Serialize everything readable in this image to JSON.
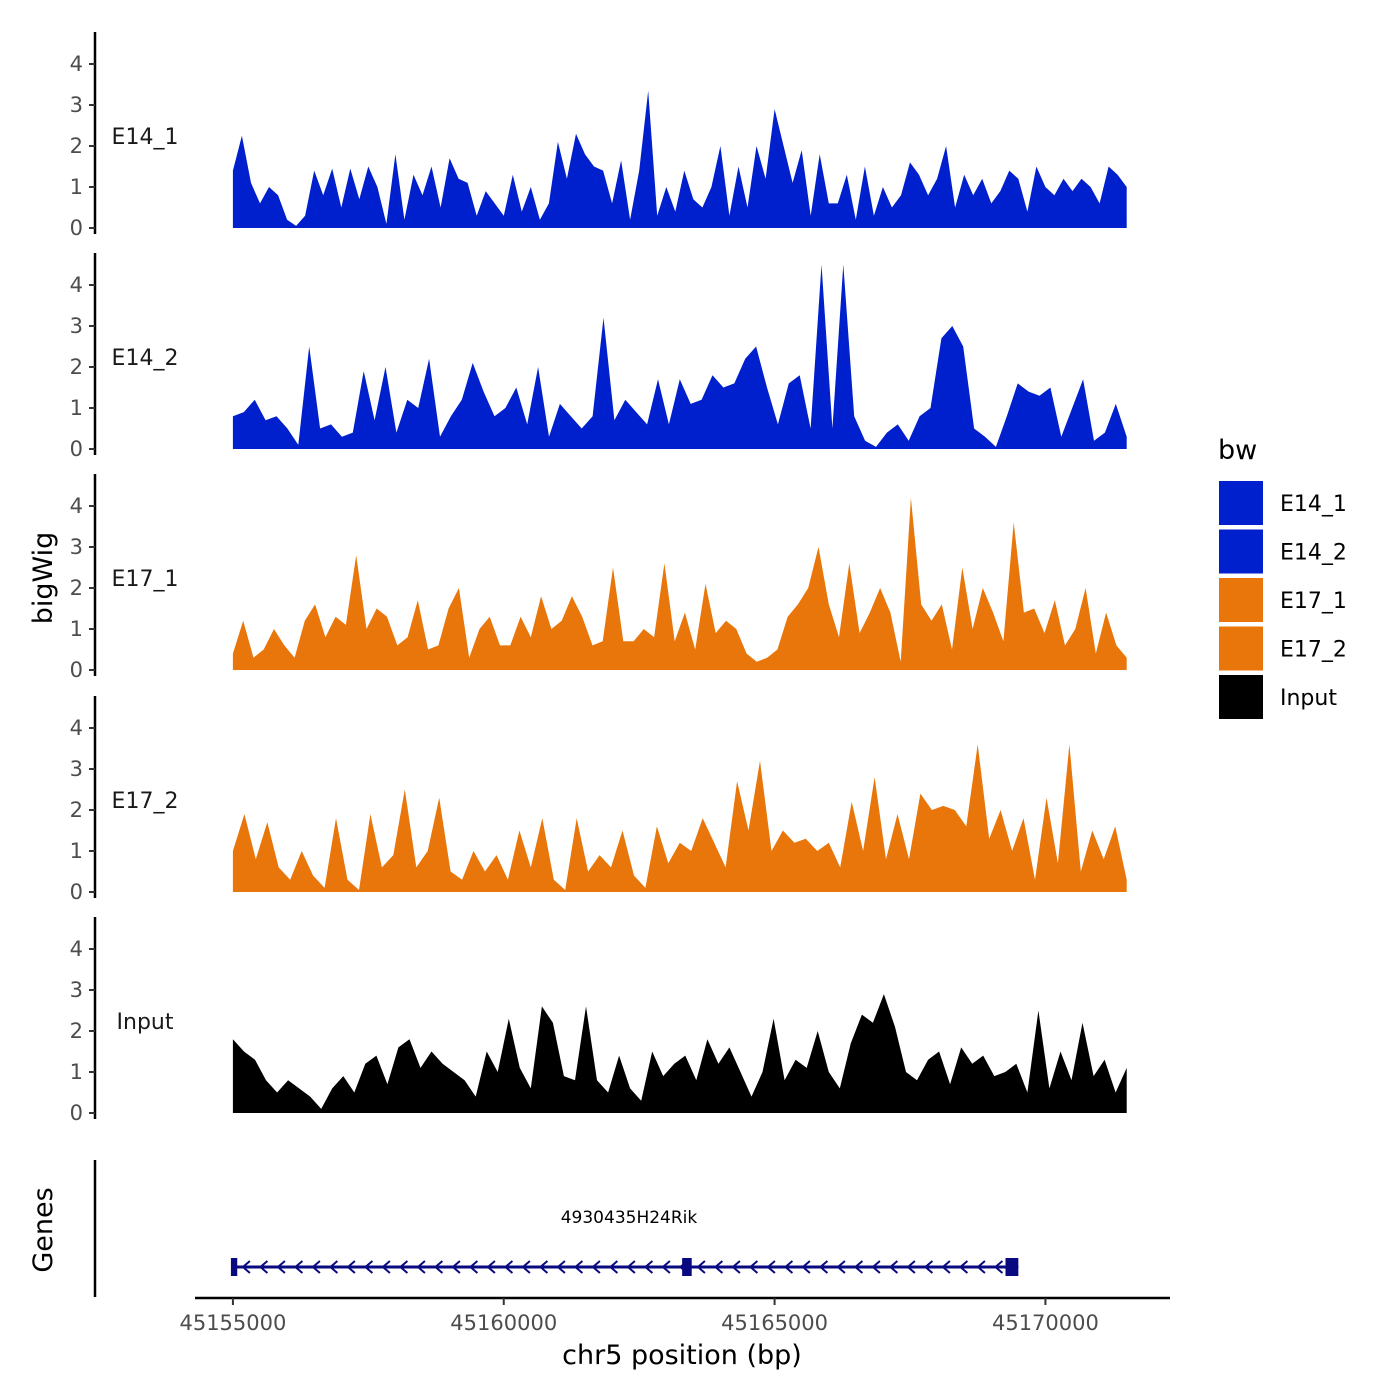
{
  "chart_data": {
    "type": "area",
    "ylabel": "bigWig",
    "xlabel": "chr5 position (bp)",
    "genes_label": "Genes",
    "y_ticks": [
      "0",
      "1",
      "2",
      "3",
      "4"
    ],
    "ylim": [
      0,
      4.7
    ],
    "x_ticks": [
      "45155000",
      "45160000",
      "45165000",
      "45170000"
    ],
    "xlim": [
      45154300,
      45172300
    ],
    "x_range": [
      45155000,
      45171500
    ],
    "legend": {
      "title": "bw",
      "entries": [
        {
          "label": "E14_1",
          "color": "#0020CD"
        },
        {
          "label": "E14_2",
          "color": "#0020CD"
        },
        {
          "label": "E17_1",
          "color": "#E8760A"
        },
        {
          "label": "E17_2",
          "color": "#E8760A"
        },
        {
          "label": "Input",
          "color": "#000000"
        }
      ]
    },
    "series": [
      {
        "name": "E14_1",
        "color": "#0020CD",
        "values": [
          1.4,
          2.25,
          1.1,
          0.6,
          1.0,
          0.8,
          0.2,
          0.05,
          0.3,
          1.4,
          0.8,
          1.45,
          0.5,
          1.45,
          0.7,
          1.5,
          1.0,
          0.1,
          1.8,
          0.2,
          1.3,
          0.8,
          1.5,
          0.5,
          1.7,
          1.2,
          1.1,
          0.3,
          0.9,
          0.6,
          0.3,
          1.3,
          0.4,
          1.0,
          0.2,
          0.6,
          2.1,
          1.2,
          2.3,
          1.8,
          1.5,
          1.4,
          0.6,
          1.65,
          0.2,
          1.4,
          3.35,
          0.3,
          1.0,
          0.4,
          1.4,
          0.7,
          0.5,
          1.0,
          2.0,
          0.3,
          1.5,
          0.5,
          2.0,
          1.2,
          2.9,
          2.0,
          1.1,
          1.9,
          0.3,
          1.8,
          0.6,
          0.6,
          1.3,
          0.2,
          1.5,
          0.3,
          1.0,
          0.5,
          0.8,
          1.6,
          1.3,
          0.8,
          1.2,
          2.0,
          0.5,
          1.3,
          0.8,
          1.2,
          0.6,
          0.9,
          1.4,
          1.2,
          0.4,
          1.5,
          1.0,
          0.8,
          1.2,
          0.9,
          1.2,
          1.0,
          0.6,
          1.5,
          1.3,
          1.0
        ]
      },
      {
        "name": "E14_2",
        "color": "#0020CD",
        "values": [
          0.8,
          0.9,
          1.2,
          0.7,
          0.8,
          0.5,
          0.1,
          2.5,
          0.5,
          0.6,
          0.3,
          0.4,
          1.9,
          0.7,
          2.0,
          0.4,
          1.2,
          1.0,
          2.2,
          0.3,
          0.8,
          1.2,
          2.1,
          1.4,
          0.8,
          1.0,
          1.5,
          0.6,
          2.0,
          0.3,
          1.1,
          0.8,
          0.5,
          0.8,
          3.2,
          0.7,
          1.2,
          0.9,
          0.6,
          1.7,
          0.6,
          1.7,
          1.1,
          1.2,
          1.8,
          1.5,
          1.6,
          2.2,
          2.5,
          1.5,
          0.6,
          1.6,
          1.8,
          0.5,
          4.5,
          0.5,
          4.5,
          0.8,
          0.2,
          0.05,
          0.4,
          0.6,
          0.2,
          0.8,
          1.0,
          2.7,
          3.0,
          2.5,
          0.5,
          0.3,
          0.05,
          0.8,
          1.6,
          1.4,
          1.3,
          1.5,
          0.3,
          1.0,
          1.7,
          0.2,
          0.4,
          1.1,
          0.3
        ]
      },
      {
        "name": "E17_1",
        "color": "#E8760A",
        "values": [
          0.4,
          1.2,
          0.3,
          0.5,
          1.0,
          0.6,
          0.3,
          1.2,
          1.6,
          0.8,
          1.3,
          1.1,
          2.8,
          1.0,
          1.5,
          1.3,
          0.6,
          0.8,
          1.7,
          0.5,
          0.6,
          1.5,
          2.0,
          0.3,
          1.0,
          1.3,
          0.6,
          0.6,
          1.3,
          0.8,
          1.8,
          1.0,
          1.2,
          1.8,
          1.3,
          0.6,
          0.7,
          2.5,
          0.7,
          0.7,
          1.0,
          0.8,
          2.6,
          0.7,
          1.4,
          0.5,
          2.1,
          0.9,
          1.2,
          1.0,
          0.4,
          0.2,
          0.3,
          0.5,
          1.3,
          1.6,
          2.0,
          3.0,
          1.6,
          0.8,
          2.6,
          0.9,
          1.4,
          2.0,
          1.4,
          0.2,
          4.2,
          1.6,
          1.2,
          1.6,
          0.5,
          2.5,
          1.0,
          2.0,
          1.4,
          0.7,
          3.6,
          1.4,
          1.5,
          0.9,
          1.7,
          0.6,
          1.0,
          2.0,
          0.4,
          1.4,
          0.6,
          0.3
        ]
      },
      {
        "name": "E17_2",
        "color": "#E8760A",
        "values": [
          1.0,
          1.9,
          0.8,
          1.7,
          0.6,
          0.3,
          1.0,
          0.4,
          0.1,
          1.8,
          0.3,
          0.05,
          1.9,
          0.6,
          0.9,
          2.5,
          0.6,
          1.0,
          2.3,
          0.5,
          0.3,
          1.0,
          0.5,
          0.9,
          0.3,
          1.5,
          0.6,
          1.8,
          0.3,
          0.05,
          1.8,
          0.5,
          0.9,
          0.6,
          1.5,
          0.4,
          0.1,
          1.6,
          0.7,
          1.2,
          1.0,
          1.8,
          1.2,
          0.6,
          2.7,
          1.5,
          3.2,
          1.0,
          1.5,
          1.2,
          1.3,
          1.0,
          1.2,
          0.6,
          2.2,
          1.0,
          2.8,
          0.8,
          1.9,
          0.8,
          2.4,
          2.0,
          2.1,
          2.0,
          1.6,
          3.6,
          1.3,
          2.0,
          1.0,
          1.8,
          0.3,
          2.3,
          0.7,
          3.6,
          0.5,
          1.5,
          0.8,
          1.6,
          0.3
        ]
      },
      {
        "name": "Input",
        "color": "#000000",
        "values": [
          1.8,
          1.5,
          1.3,
          0.8,
          0.5,
          0.8,
          0.6,
          0.4,
          0.1,
          0.6,
          0.9,
          0.5,
          1.2,
          1.4,
          0.7,
          1.6,
          1.8,
          1.1,
          1.5,
          1.2,
          1.0,
          0.8,
          0.4,
          1.5,
          1.0,
          2.3,
          1.1,
          0.6,
          2.6,
          2.2,
          0.9,
          0.8,
          2.6,
          0.8,
          0.5,
          1.4,
          0.6,
          0.3,
          1.5,
          0.9,
          1.2,
          1.4,
          0.8,
          1.8,
          1.2,
          1.6,
          1.0,
          0.4,
          1.0,
          2.3,
          0.8,
          1.3,
          1.1,
          2.0,
          1.0,
          0.6,
          1.7,
          2.4,
          2.2,
          2.9,
          2.1,
          1.0,
          0.8,
          1.3,
          1.5,
          0.7,
          1.6,
          1.2,
          1.4,
          0.9,
          1.0,
          1.2,
          0.5,
          2.5,
          0.6,
          1.5,
          0.8,
          2.2,
          0.9,
          1.3,
          0.5,
          1.1
        ]
      }
    ],
    "gene": {
      "name": "4930435H24Rik",
      "start": 45155000,
      "end": 45169500,
      "strand": "-",
      "exons": [
        [
          45155000,
          45155080
        ],
        [
          45163330,
          45163470
        ],
        [
          45169300,
          45169500
        ]
      ]
    }
  }
}
